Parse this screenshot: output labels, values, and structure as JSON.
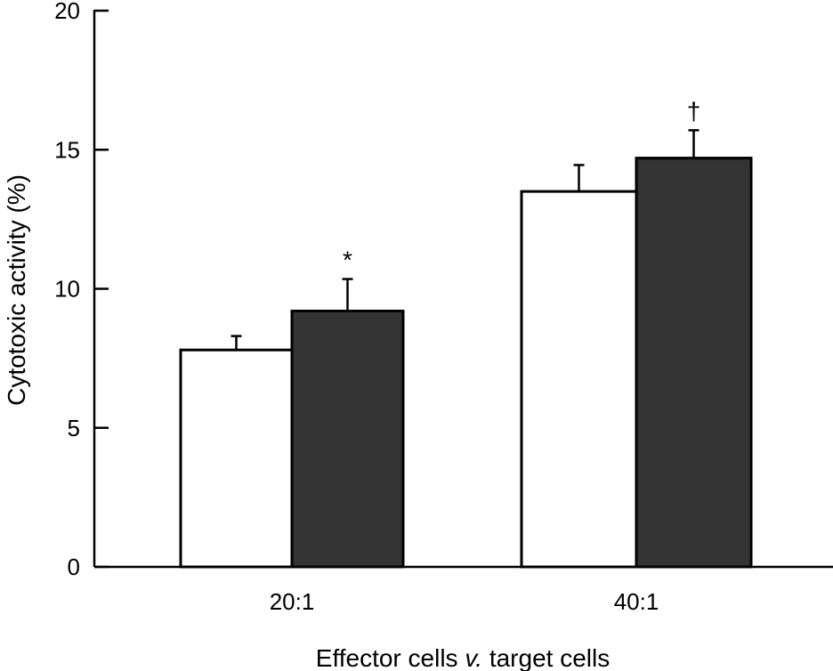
{
  "chart_data": {
    "type": "bar",
    "title": "",
    "categories": [
      "20:1",
      "40:1"
    ],
    "series": [
      {
        "color": "#ffffff",
        "values": [
          7.8,
          13.5
        ],
        "errors": [
          0.5,
          0.95
        ]
      },
      {
        "color": "#333333",
        "values": [
          9.2,
          14.7
        ],
        "errors": [
          1.15,
          1.0
        ]
      }
    ],
    "annotations": [
      {
        "category": "20:1",
        "series_index": 1,
        "text": "*"
      },
      {
        "category": "40:1",
        "series_index": 1,
        "text": "†"
      }
    ],
    "xlabel_parts": [
      "Effector cells ",
      "v.",
      " target cells"
    ],
    "ylabel": "Cytotoxic activity (%)",
    "ylim": [
      0,
      20
    ],
    "yticks": [
      "0",
      "5",
      "10",
      "15",
      "20"
    ],
    "grid": false
  }
}
